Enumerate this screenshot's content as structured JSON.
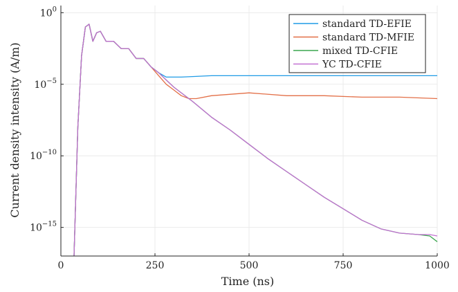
{
  "chart_data": {
    "type": "line",
    "xlabel": "Time (ns)",
    "ylabel": "Current density intensity (A/m)",
    "xlim": [
      0,
      1000
    ],
    "ylim_log10": [
      -17,
      0.5
    ],
    "y_scale": "log",
    "x_ticks": [
      {
        "value": 0,
        "label": "0"
      },
      {
        "value": 250,
        "label": "250"
      },
      {
        "value": 500,
        "label": "500"
      },
      {
        "value": 750,
        "label": "750"
      },
      {
        "value": 1000,
        "label": "1000"
      }
    ],
    "y_ticks": [
      {
        "exp": 0,
        "base": "10",
        "sup": "0"
      },
      {
        "exp": -5,
        "base": "10",
        "sup": "−5"
      },
      {
        "exp": -10,
        "base": "10",
        "sup": "−10"
      },
      {
        "exp": -15,
        "base": "10",
        "sup": "−15"
      }
    ],
    "grid": true,
    "legend_position": "top-right",
    "series": [
      {
        "name": "standard TD-EFIE",
        "color": "#1f9be6",
        "points": [
          [
            35,
            -17
          ],
          [
            45,
            -8
          ],
          [
            55,
            -3
          ],
          [
            65,
            -1
          ],
          [
            75,
            -0.8
          ],
          [
            85,
            -2
          ],
          [
            95,
            -1.4
          ],
          [
            105,
            -1.3
          ],
          [
            120,
            -2
          ],
          [
            140,
            -2
          ],
          [
            160,
            -2.5
          ],
          [
            180,
            -2.5
          ],
          [
            200,
            -3.2
          ],
          [
            220,
            -3.2
          ],
          [
            240,
            -3.8
          ],
          [
            260,
            -4.2
          ],
          [
            280,
            -4.5
          ],
          [
            300,
            -4.5
          ],
          [
            320,
            -4.5
          ],
          [
            400,
            -4.4
          ],
          [
            500,
            -4.4
          ],
          [
            600,
            -4.4
          ],
          [
            700,
            -4.4
          ],
          [
            800,
            -4.4
          ],
          [
            900,
            -4.4
          ],
          [
            1000,
            -4.4
          ]
        ]
      },
      {
        "name": "standard TD-MFIE",
        "color": "#e36f47",
        "points": [
          [
            35,
            -17
          ],
          [
            45,
            -8
          ],
          [
            55,
            -3
          ],
          [
            65,
            -1
          ],
          [
            75,
            -0.8
          ],
          [
            85,
            -2
          ],
          [
            95,
            -1.4
          ],
          [
            105,
            -1.3
          ],
          [
            120,
            -2
          ],
          [
            140,
            -2
          ],
          [
            160,
            -2.5
          ],
          [
            180,
            -2.5
          ],
          [
            200,
            -3.2
          ],
          [
            220,
            -3.2
          ],
          [
            240,
            -3.8
          ],
          [
            260,
            -4.4
          ],
          [
            280,
            -5
          ],
          [
            300,
            -5.4
          ],
          [
            320,
            -5.8
          ],
          [
            340,
            -6
          ],
          [
            360,
            -6
          ],
          [
            400,
            -5.8
          ],
          [
            500,
            -5.6
          ],
          [
            600,
            -5.8
          ],
          [
            700,
            -5.8
          ],
          [
            800,
            -5.9
          ],
          [
            900,
            -5.9
          ],
          [
            1000,
            -6
          ]
        ]
      },
      {
        "name": "mixed TD-CFIE",
        "color": "#3aa64e",
        "points": [
          [
            35,
            -17
          ],
          [
            45,
            -8
          ],
          [
            55,
            -3
          ],
          [
            65,
            -1
          ],
          [
            75,
            -0.8
          ],
          [
            85,
            -2
          ],
          [
            95,
            -1.4
          ],
          [
            105,
            -1.3
          ],
          [
            120,
            -2
          ],
          [
            140,
            -2
          ],
          [
            160,
            -2.5
          ],
          [
            180,
            -2.5
          ],
          [
            200,
            -3.2
          ],
          [
            220,
            -3.2
          ],
          [
            240,
            -3.8
          ],
          [
            260,
            -4.2
          ],
          [
            280,
            -4.7
          ],
          [
            300,
            -5.2
          ],
          [
            350,
            -6.2
          ],
          [
            400,
            -7.3
          ],
          [
            450,
            -8.2
          ],
          [
            500,
            -9.2
          ],
          [
            550,
            -10.2
          ],
          [
            600,
            -11.1
          ],
          [
            650,
            -12
          ],
          [
            700,
            -12.9
          ],
          [
            750,
            -13.7
          ],
          [
            800,
            -14.5
          ],
          [
            850,
            -15.1
          ],
          [
            900,
            -15.4
          ],
          [
            950,
            -15.5
          ],
          [
            980,
            -15.6
          ],
          [
            1000,
            -16
          ]
        ]
      },
      {
        "name": "YC TD-CFIE",
        "color": "#c271d2",
        "points": [
          [
            35,
            -17
          ],
          [
            45,
            -8
          ],
          [
            55,
            -3
          ],
          [
            65,
            -1
          ],
          [
            75,
            -0.8
          ],
          [
            85,
            -2
          ],
          [
            95,
            -1.4
          ],
          [
            105,
            -1.3
          ],
          [
            120,
            -2
          ],
          [
            140,
            -2
          ],
          [
            160,
            -2.5
          ],
          [
            180,
            -2.5
          ],
          [
            200,
            -3.2
          ],
          [
            220,
            -3.2
          ],
          [
            240,
            -3.8
          ],
          [
            260,
            -4.2
          ],
          [
            280,
            -4.7
          ],
          [
            300,
            -5.2
          ],
          [
            350,
            -6.2
          ],
          [
            400,
            -7.3
          ],
          [
            450,
            -8.2
          ],
          [
            500,
            -9.2
          ],
          [
            550,
            -10.2
          ],
          [
            600,
            -11.1
          ],
          [
            650,
            -12
          ],
          [
            700,
            -12.9
          ],
          [
            750,
            -13.7
          ],
          [
            800,
            -14.5
          ],
          [
            850,
            -15.1
          ],
          [
            900,
            -15.4
          ],
          [
            950,
            -15.5
          ],
          [
            980,
            -15.5
          ],
          [
            1000,
            -15.6
          ]
        ]
      }
    ]
  }
}
